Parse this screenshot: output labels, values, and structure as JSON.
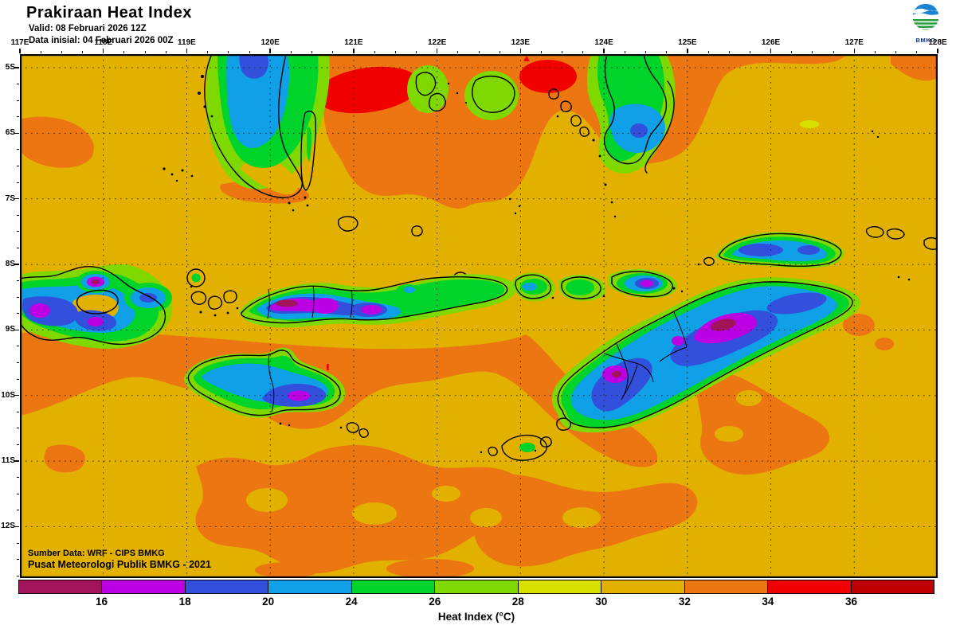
{
  "header": {
    "title": "Prakiraan Heat Index",
    "valid_line": "Valid: 08 Februari 2026 12Z",
    "init_line": "Data inisial: 04 Februari 2026 00Z"
  },
  "logo": {
    "label": "BMKG"
  },
  "map": {
    "source_line1": "Sumber Data: WRF - CIPS BMKG",
    "source_line2": "Pusat Meteorologi Publik BMKG - 2021",
    "lon_labels": [
      "117E",
      "118E",
      "119E",
      "120E",
      "121E",
      "122E",
      "123E",
      "124E",
      "125E",
      "126E",
      "127E",
      "128E"
    ],
    "lat_labels": [
      "5S",
      "6S",
      "7S",
      "8S",
      "9S",
      "10S",
      "11S",
      "12S"
    ]
  },
  "colorbar": {
    "caption": "Heat Index (°C)",
    "tick_labels": [
      "16",
      "18",
      "20",
      "24",
      "26",
      "28",
      "30",
      "32",
      "34",
      "36"
    ],
    "segment_colors": [
      "#A21459",
      "#BC00E4",
      "#3350DC",
      "#0FA0E8",
      "#00D42A",
      "#7FD800",
      "#D8E000",
      "#E2B100",
      "#EB7612",
      "#F10000",
      "#BF0000"
    ]
  },
  "chart_data": {
    "type": "heatmap",
    "title": "Prakiraan Heat Index",
    "variable": "Heat Index",
    "units": "°C",
    "levels": [
      16,
      18,
      20,
      24,
      26,
      28,
      30,
      32,
      34,
      36
    ],
    "palette": [
      "#A21459",
      "#BC00E4",
      "#3350DC",
      "#0FA0E8",
      "#00D42A",
      "#7FD800",
      "#D8E000",
      "#E2B100",
      "#EB7612",
      "#F10000",
      "#BF0000"
    ],
    "x_ticks": [
      "117E",
      "118E",
      "119E",
      "120E",
      "121E",
      "122E",
      "123E",
      "124E",
      "125E",
      "126E",
      "127E",
      "128E"
    ],
    "y_ticks": [
      "5S",
      "6S",
      "7S",
      "8S",
      "9S",
      "10S",
      "11S",
      "12S"
    ],
    "legend_position": "bottom",
    "grid": "dotted"
  }
}
